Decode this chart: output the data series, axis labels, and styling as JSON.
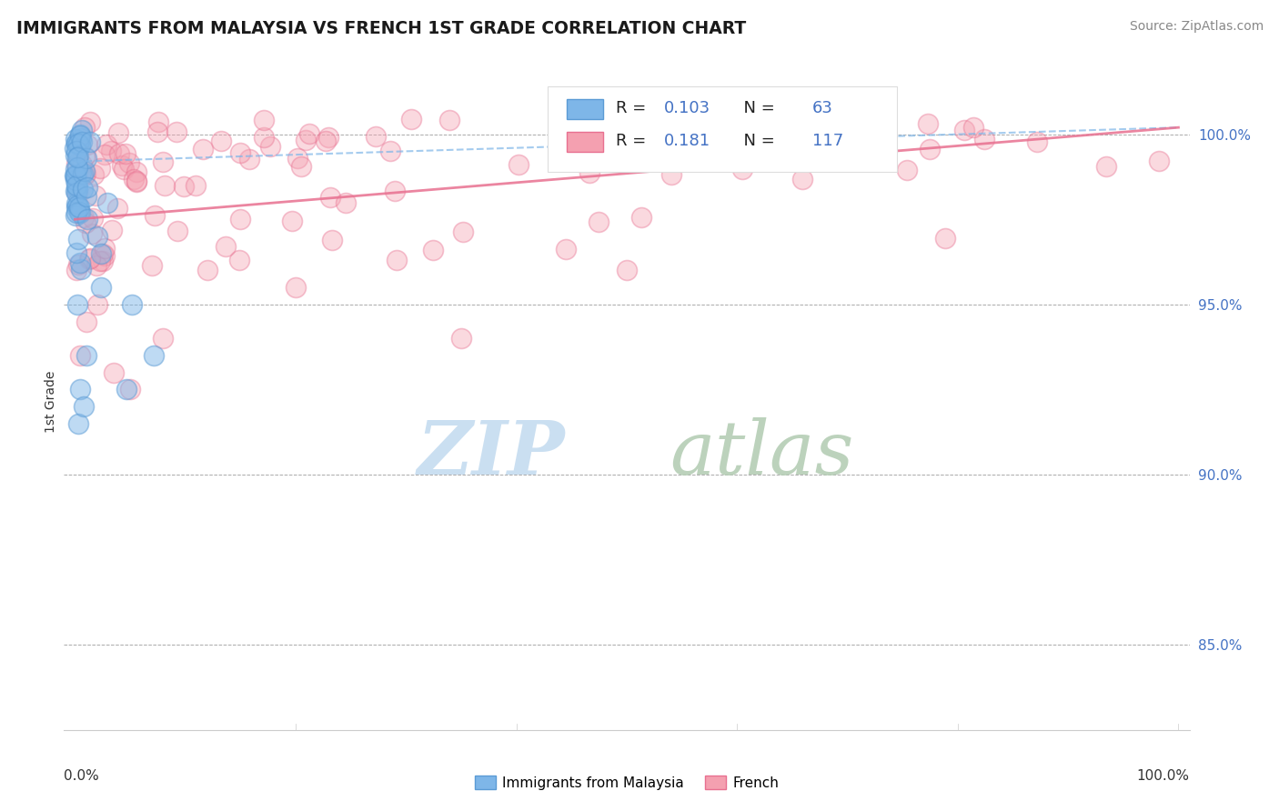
{
  "title": "IMMIGRANTS FROM MALAYSIA VS FRENCH 1ST GRADE CORRELATION CHART",
  "source": "Source: ZipAtlas.com",
  "ylabel": "1st Grade",
  "blue_color": "#7EB6E8",
  "pink_color": "#F4A0B0",
  "blue_edge": "#5B9BD5",
  "pink_edge": "#E87090",
  "trend_blue_color": "#7EB6E8",
  "trend_pink_color": "#E87090",
  "legend_label_blue": "Immigrants from Malaysia",
  "legend_label_pink": "French",
  "ytick_vals": [
    85.0,
    90.0,
    95.0,
    100.0
  ],
  "ytick_labels": [
    "85.0%",
    "90.0%",
    "95.0%",
    "100.0%"
  ],
  "ylim_low": 82.5,
  "ylim_high": 101.8,
  "watermark_zip_color": "#C5DCF0",
  "watermark_atlas_color": "#B5CEB5"
}
